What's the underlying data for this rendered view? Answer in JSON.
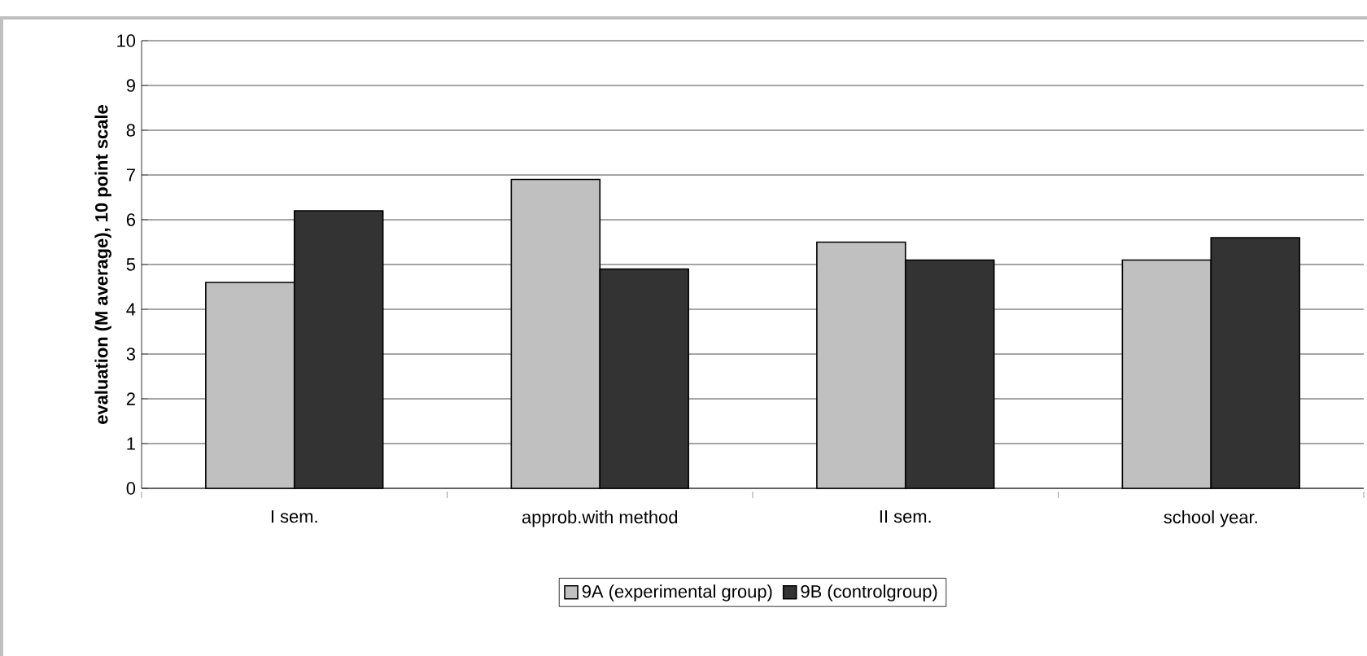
{
  "chart_data": {
    "type": "bar",
    "ylabel": "evaluation (M average), 10 point scale",
    "categories": [
      "I sem.",
      "approb.with method",
      "II sem.",
      "school year."
    ],
    "series": [
      {
        "name": "9A (experimental group)",
        "color": "#c0c0c0",
        "values": [
          4.6,
          6.9,
          5.5,
          5.1
        ]
      },
      {
        "name": "9B (controlgroup)",
        "color": "#333333",
        "values": [
          6.2,
          4.9,
          5.1,
          5.6
        ]
      }
    ],
    "ylim": [
      0,
      10
    ],
    "yticks": [
      0,
      1,
      2,
      3,
      4,
      5,
      6,
      7,
      8,
      9,
      10
    ],
    "grid": "y",
    "legend": "bottom"
  }
}
